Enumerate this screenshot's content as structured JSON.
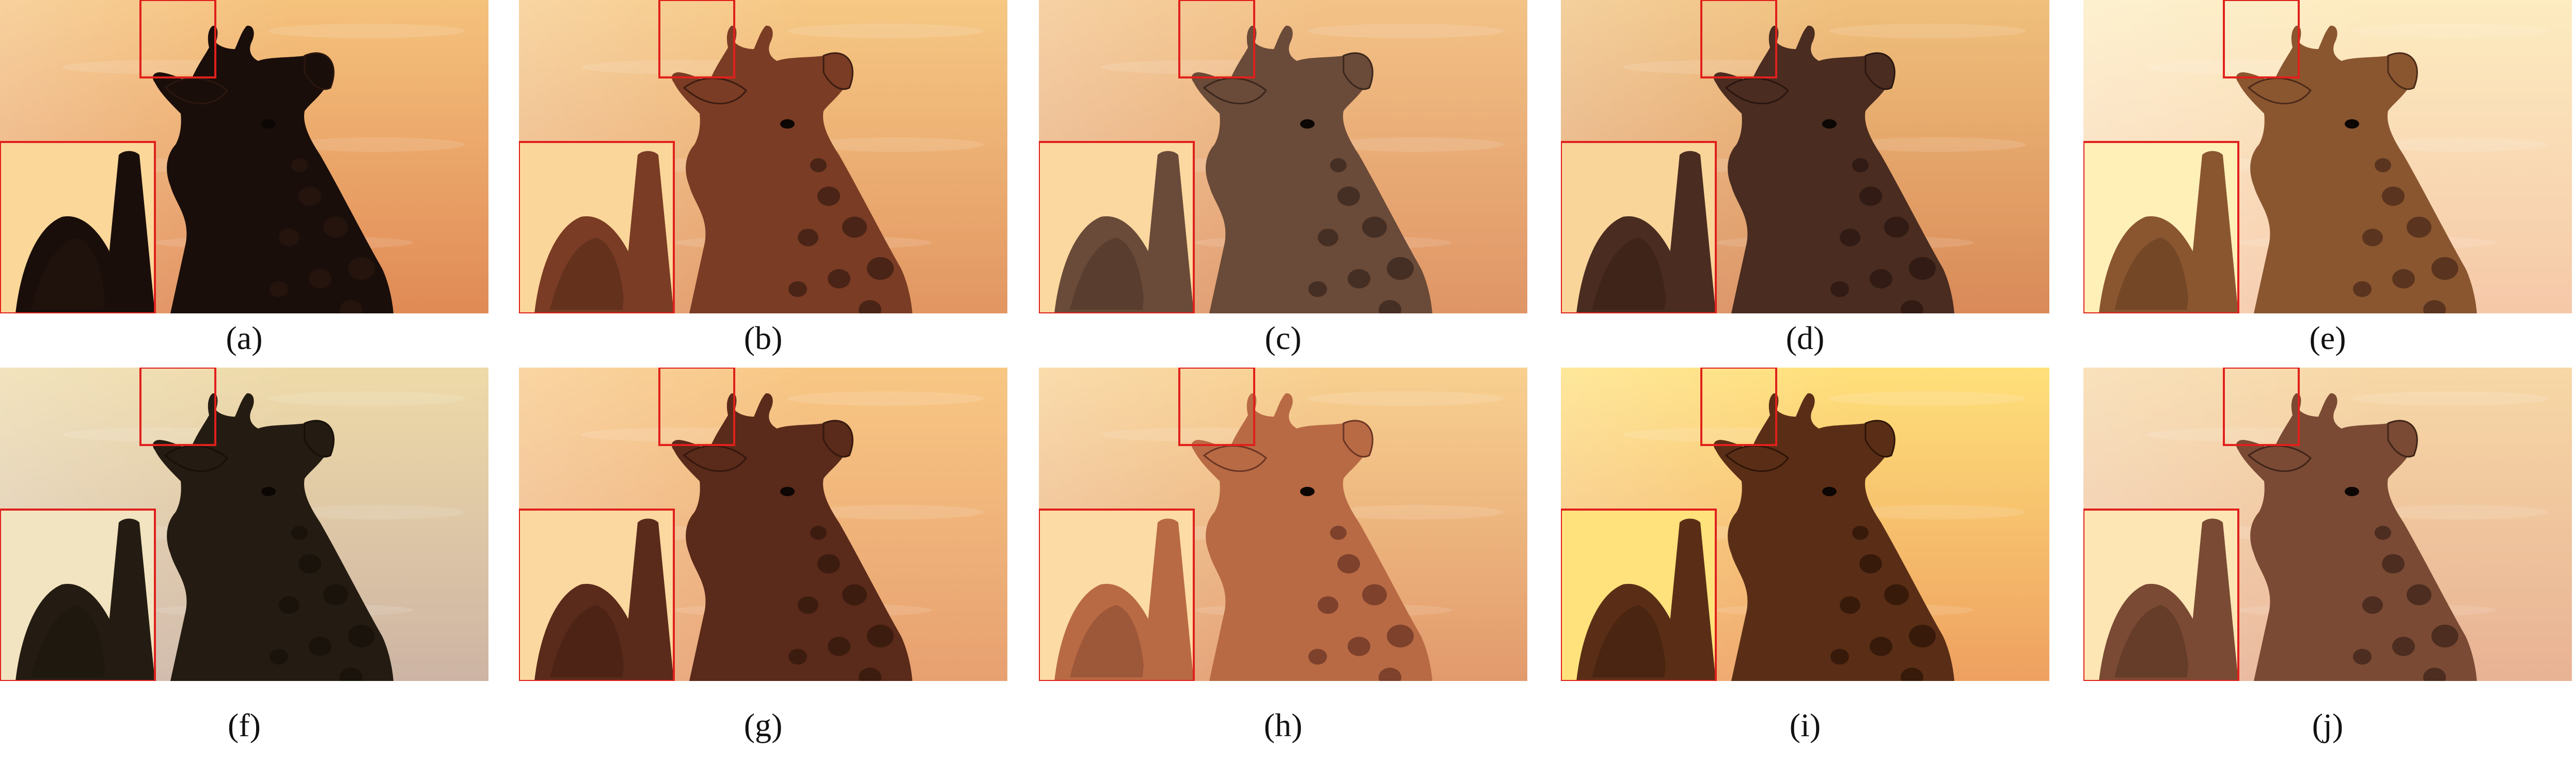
{
  "panels": [
    {
      "label": "(a)",
      "sky_top": "#f5c27c",
      "sky_bottom": "#e08a56",
      "body": "#1a0e0a",
      "patch": "#2a1710",
      "zoom_bg": "#fbd79a"
    },
    {
      "label": "(b)",
      "sky_top": "#f6c884",
      "sky_bottom": "#e29662",
      "body": "#7a3c24",
      "patch": "#3b1c12",
      "zoom_bg": "#fbd69a"
    },
    {
      "label": "(c)",
      "sky_top": "#f3c286",
      "sky_bottom": "#df9566",
      "body": "#6a4a38",
      "patch": "#3a261c",
      "zoom_bg": "#fbd8a0"
    },
    {
      "label": "(d)",
      "sky_top": "#f0c07c",
      "sky_bottom": "#d98a58",
      "body": "#4a2c20",
      "patch": "#2a1610",
      "zoom_bg": "#f9d59a"
    },
    {
      "label": "(e)",
      "sky_top": "#fdecc0",
      "sky_bottom": "#f5c8a8",
      "body": "#8a5630",
      "patch": "#4a2a18",
      "zoom_bg": "#fff0b8"
    },
    {
      "label": "(f)",
      "sky_top": "#eedaa8",
      "sky_bottom": "#cdb4a4",
      "body": "#241c12",
      "patch": "#16100a",
      "zoom_bg": "#f2e4c0"
    },
    {
      "label": "(g)",
      "sky_top": "#f8c784",
      "sky_bottom": "#e7a070",
      "body": "#5a2a1a",
      "patch": "#34180e",
      "zoom_bg": "#fbd8a0"
    },
    {
      "label": "(h)",
      "sky_top": "#f8d090",
      "sky_bottom": "#e29a6c",
      "body": "#b86a44",
      "patch": "#6a3424",
      "zoom_bg": "#fcdba4"
    },
    {
      "label": "(i)",
      "sky_top": "#ffe07a",
      "sky_bottom": "#eea060",
      "body": "#5a2e16",
      "patch": "#2e1408",
      "zoom_bg": "#ffe27c"
    },
    {
      "label": "(j)",
      "sky_top": "#f7d8a6",
      "sky_bottom": "#e8b294",
      "body": "#7a4a34",
      "patch": "#3e2418",
      "zoom_bg": "#fde6b4"
    }
  ]
}
